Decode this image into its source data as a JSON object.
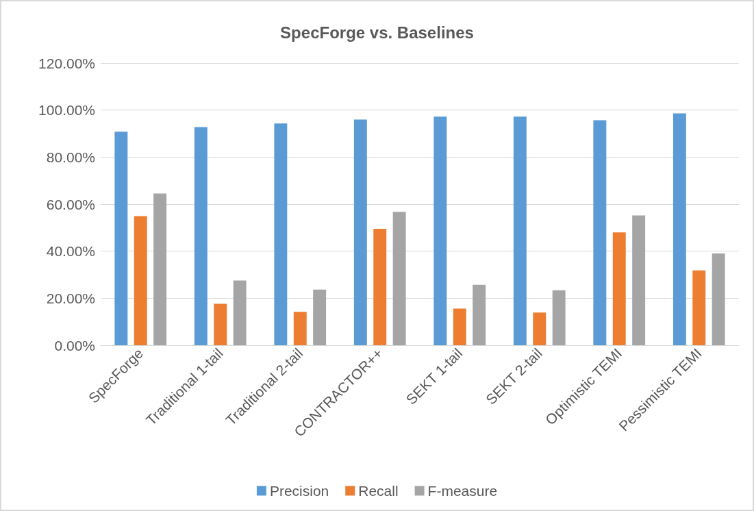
{
  "chart_data": {
    "type": "bar",
    "title": "SpecForge vs. Baselines",
    "categories": [
      "SpecForge",
      "Traditional 1-tail",
      "Traditional 2-tail",
      "CONTRACTOR++",
      "SEKT 1-tail",
      "SEKT 2-tail",
      "Optimistic TEMI",
      "Pessimistic TEMI"
    ],
    "series": [
      {
        "name": "Precision",
        "color": "#5b9bd5",
        "values": [
          90.8,
          92.8,
          94.3,
          96.0,
          97.2,
          97.2,
          95.7,
          98.6
        ]
      },
      {
        "name": "Recall",
        "color": "#ed7d31",
        "values": [
          54.9,
          17.6,
          14.2,
          49.5,
          15.6,
          13.9,
          48.0,
          31.8
        ]
      },
      {
        "name": "F-measure",
        "color": "#a5a5a5",
        "values": [
          64.5,
          27.5,
          23.7,
          56.7,
          25.7,
          23.4,
          55.2,
          39.0
        ]
      }
    ],
    "ylim": [
      0,
      120
    ],
    "yticks": [
      {
        "value": 0,
        "label": "0.00%"
      },
      {
        "value": 20,
        "label": "20.00%"
      },
      {
        "value": 40,
        "label": "40.00%"
      },
      {
        "value": 60,
        "label": "60.00%"
      },
      {
        "value": 80,
        "label": "80.00%"
      },
      {
        "value": 100,
        "label": "100.00%"
      },
      {
        "value": 120,
        "label": "120.00%"
      }
    ],
    "grid": "y",
    "legend": "bottom"
  }
}
